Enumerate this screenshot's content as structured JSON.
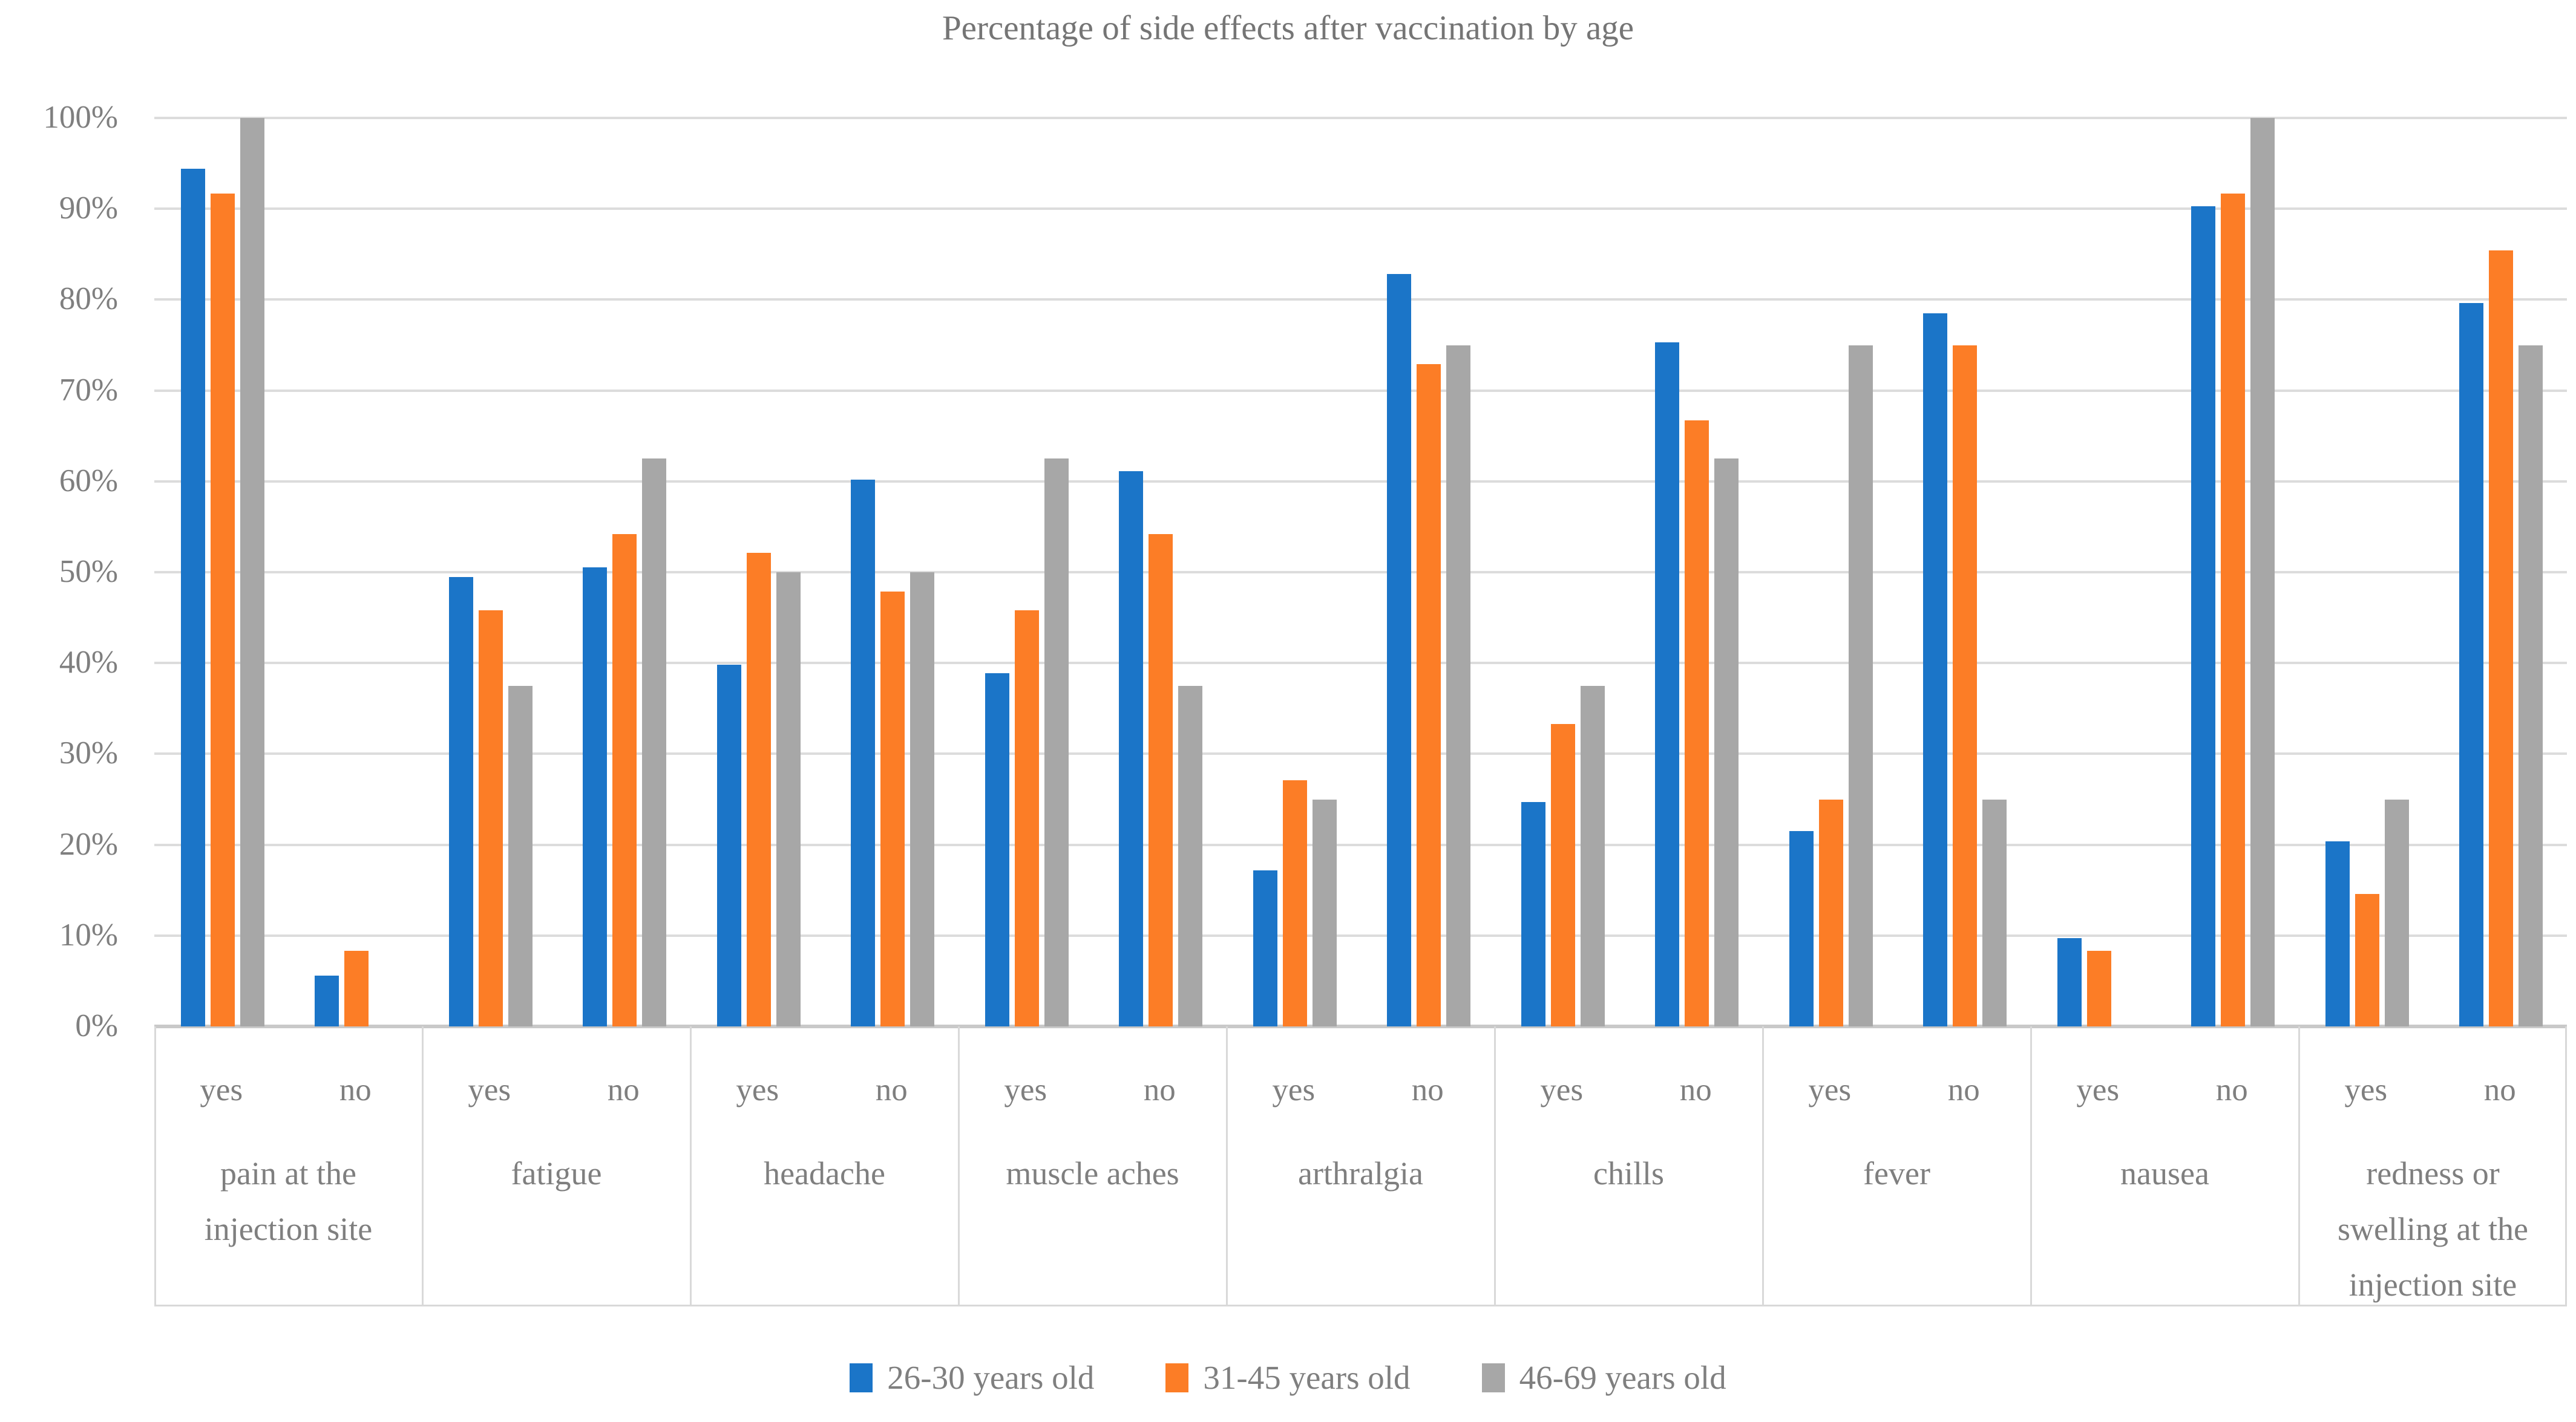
{
  "chart_data": {
    "type": "bar",
    "title": "Percentage of side effects after vaccination by age",
    "xlabel": "",
    "ylabel": "",
    "ylim": [
      0,
      100
    ],
    "grid": true,
    "legend_position": "bottom",
    "yticks": [
      "0%",
      "10%",
      "20%",
      "30%",
      "40%",
      "50%",
      "60%",
      "70%",
      "80%",
      "90%",
      "100%"
    ],
    "subcategories": [
      "yes",
      "no"
    ],
    "categories": [
      {
        "label": "pain at the injection site",
        "lines": [
          "pain at the",
          "injection site"
        ]
      },
      {
        "label": "fatigue",
        "lines": [
          "fatigue"
        ]
      },
      {
        "label": "headache",
        "lines": [
          "headache"
        ]
      },
      {
        "label": "muscle aches",
        "lines": [
          "muscle aches"
        ]
      },
      {
        "label": "arthralgia",
        "lines": [
          "arthralgia"
        ]
      },
      {
        "label": "chills",
        "lines": [
          "chills"
        ]
      },
      {
        "label": "fever",
        "lines": [
          "fever"
        ]
      },
      {
        "label": "nausea",
        "lines": [
          "nausea"
        ]
      },
      {
        "label": "redness or swelling at the injection site",
        "lines": [
          "redness or",
          "swelling at the",
          "injection site"
        ]
      }
    ],
    "series": [
      {
        "name": "26-30 years old",
        "color": "#1b75c8",
        "values": [
          [
            94.4,
            5.6
          ],
          [
            49.5,
            50.5
          ],
          [
            39.8,
            60.2
          ],
          [
            38.9,
            61.1
          ],
          [
            17.2,
            82.8
          ],
          [
            24.7,
            75.3
          ],
          [
            21.5,
            78.5
          ],
          [
            9.7,
            90.3
          ],
          [
            20.4,
            79.6
          ]
        ]
      },
      {
        "name": "31-45 years old",
        "color": "#fc7d26",
        "values": [
          [
            91.7,
            8.3
          ],
          [
            45.8,
            54.2
          ],
          [
            52.1,
            47.9
          ],
          [
            45.8,
            54.2
          ],
          [
            27.1,
            72.9
          ],
          [
            33.3,
            66.7
          ],
          [
            25,
            75
          ],
          [
            8.3,
            91.7
          ],
          [
            14.6,
            85.4
          ]
        ]
      },
      {
        "name": "46-69 years old",
        "color": "#a7a7a7",
        "values": [
          [
            100,
            0
          ],
          [
            37.5,
            62.5
          ],
          [
            50,
            50
          ],
          [
            62.5,
            37.5
          ],
          [
            25,
            75
          ],
          [
            37.5,
            62.5
          ],
          [
            75,
            25
          ],
          [
            0,
            100
          ],
          [
            25,
            75
          ]
        ]
      }
    ],
    "colors": {
      "gridline": "#dcdcdc",
      "axis_line": "#c9c9c9",
      "label_text": "#7f7f7f",
      "title_text": "#757575",
      "box_border": "#d9d9d9"
    }
  }
}
